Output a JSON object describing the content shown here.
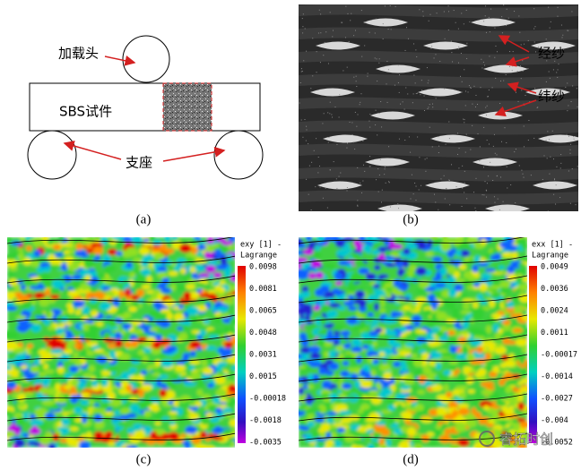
{
  "panel_a": {
    "loading_head": "加载头",
    "specimen": "SBS试件",
    "supports": "支座",
    "caption": "(a)"
  },
  "panel_b": {
    "warp": "经纱",
    "weft": "纬纱",
    "caption": "(b)"
  },
  "panel_c": {
    "colorbar_title": [
      "exy [1] -",
      "Lagrange"
    ],
    "colorbar_ticks": [
      "0.0098",
      "0.0081",
      "0.0065",
      "0.0048",
      "0.0031",
      "0.0015",
      "-0.00018",
      "-0.0018",
      "-0.0035"
    ],
    "caption": "(c)"
  },
  "panel_d": {
    "colorbar_title": [
      "exx [1] -",
      "Lagrange"
    ],
    "colorbar_ticks": [
      "0.0049",
      "0.0036",
      "0.0024",
      "0.0011",
      "-0.00017",
      "-0.0014",
      "-0.0027",
      "-0.004",
      "-0.0052"
    ],
    "caption": "(d)"
  },
  "watermark": "睿拓时创"
}
